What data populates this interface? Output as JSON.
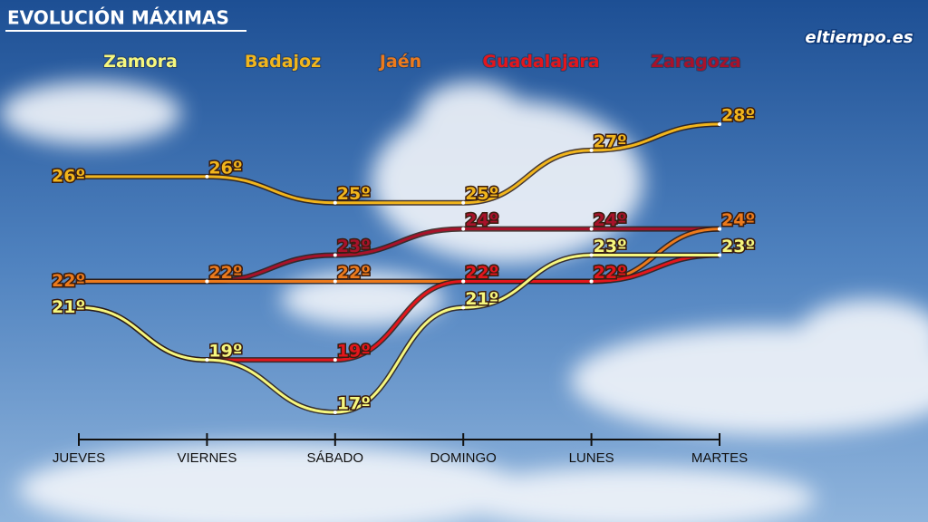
{
  "chart_data": {
    "type": "line",
    "title": "EVOLUCIÓN MÁXIMAS",
    "logo": "eltiempo.es",
    "categories": [
      "JUEVES",
      "VIERNES",
      "SÁBADO",
      "DOMINGO",
      "LUNES",
      "MARTES"
    ],
    "series": [
      {
        "name": "Zaragoza",
        "color": "#a8122a",
        "values": [
          22,
          22,
          23,
          24,
          24,
          24
        ],
        "value_labels": [
          "22º",
          "22º",
          "23º",
          "24º",
          "24º",
          "24º"
        ]
      },
      {
        "name": "Jaén",
        "color": "#ec7a1c",
        "values": [
          22,
          22,
          22,
          22,
          22,
          24
        ],
        "value_labels": [
          "22º",
          "22º",
          "22º",
          "22º",
          "22º",
          "24º"
        ]
      },
      {
        "name": "Guadalajara",
        "color": "#e3161c",
        "values": [
          21,
          19,
          19,
          22,
          22,
          23
        ],
        "value_labels": [
          "21º",
          "19º",
          "19º",
          "22º",
          "22º",
          "23º"
        ]
      },
      {
        "name": "Zamora",
        "color": "#f6f77e",
        "values": [
          21,
          19,
          17,
          21,
          23,
          23
        ],
        "value_labels": [
          "21º",
          "19º",
          "17º",
          "21º",
          "23º",
          "23º"
        ]
      },
      {
        "name": "Badajoz",
        "color": "#f1b51c",
        "values": [
          26,
          26,
          25,
          25,
          27,
          28
        ],
        "value_labels": [
          "26º",
          "26º",
          "25º",
          "25º",
          "27º",
          "28º"
        ]
      }
    ]
  }
}
